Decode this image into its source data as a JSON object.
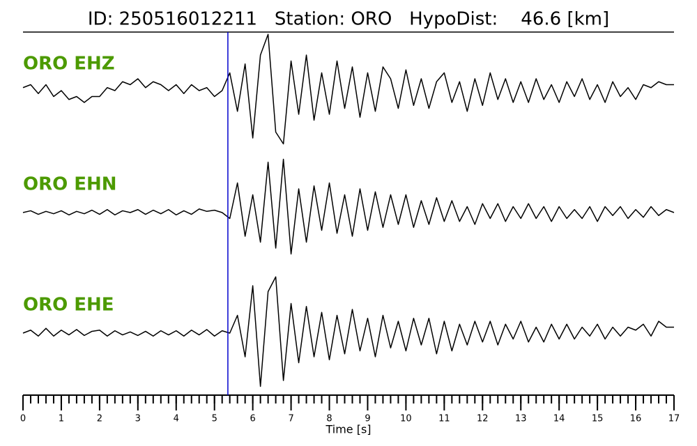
{
  "chart_data": {
    "type": "line",
    "title": "ID: 250516012211   Station: ORO   HypoDist:    46.6 [km]",
    "xlabel": "Time [s]",
    "x": [
      0,
      0.2,
      0.4,
      0.6,
      0.8,
      1,
      1.2,
      1.4,
      1.6,
      1.8,
      2,
      2.2,
      2.4,
      2.6,
      2.8,
      3,
      3.2,
      3.4,
      3.6,
      3.8,
      4,
      4.2,
      4.4,
      4.6,
      4.8,
      5,
      5.2,
      5.4,
      5.6,
      5.8,
      6,
      6.2,
      6.4,
      6.6,
      6.8,
      7,
      7.2,
      7.4,
      7.6,
      7.8,
      8,
      8.2,
      8.4,
      8.6,
      8.8,
      9,
      9.2,
      9.4,
      9.6,
      9.8,
      10,
      10.2,
      10.4,
      10.6,
      10.8,
      11,
      11.2,
      11.4,
      11.6,
      11.8,
      12,
      12.2,
      12.4,
      12.6,
      12.8,
      13,
      13.2,
      13.4,
      13.6,
      13.8,
      14,
      14.2,
      14.4,
      14.6,
      14.8,
      15,
      15.2,
      15.4,
      15.6,
      15.8,
      16,
      16.2,
      16.4,
      16.6,
      16.8,
      17
    ],
    "series": [
      {
        "name": "ORO EHZ",
        "color": "#000000",
        "values": [
          0.05,
          0.1,
          -0.05,
          0.1,
          -0.1,
          0.0,
          -0.15,
          -0.1,
          -0.2,
          -0.1,
          -0.1,
          0.05,
          0.0,
          0.15,
          0.1,
          0.2,
          0.05,
          0.15,
          0.1,
          0.0,
          0.1,
          -0.05,
          0.1,
          0.0,
          0.05,
          -0.1,
          0.0,
          0.3,
          -0.35,
          0.45,
          -0.8,
          0.6,
          0.95,
          -0.7,
          -0.9,
          0.5,
          -0.4,
          0.6,
          -0.5,
          0.3,
          -0.4,
          0.5,
          -0.3,
          0.4,
          -0.45,
          0.3,
          -0.35,
          0.4,
          0.2,
          -0.3,
          0.35,
          -0.25,
          0.2,
          -0.3,
          0.15,
          0.3,
          -0.2,
          0.15,
          -0.35,
          0.2,
          -0.25,
          0.3,
          -0.15,
          0.2,
          -0.2,
          0.15,
          -0.2,
          0.2,
          -0.15,
          0.1,
          -0.2,
          0.15,
          -0.1,
          0.2,
          -0.15,
          0.1,
          -0.2,
          0.15,
          -0.1,
          0.05,
          -0.15,
          0.1,
          0.05,
          0.15,
          0.1,
          0.1
        ]
      },
      {
        "name": "ORO EHN",
        "color": "#000000",
        "values": [
          0.0,
          0.03,
          -0.03,
          0.02,
          -0.02,
          0.03,
          -0.04,
          0.02,
          -0.02,
          0.04,
          -0.03,
          0.05,
          -0.04,
          0.03,
          0.0,
          0.05,
          -0.03,
          0.04,
          -0.02,
          0.05,
          -0.04,
          0.03,
          -0.03,
          0.06,
          0.02,
          0.04,
          0.0,
          -0.1,
          0.5,
          -0.4,
          0.3,
          -0.5,
          0.85,
          -0.6,
          0.9,
          -0.7,
          0.4,
          -0.5,
          0.45,
          -0.3,
          0.5,
          -0.35,
          0.3,
          -0.4,
          0.4,
          -0.3,
          0.35,
          -0.25,
          0.3,
          -0.2,
          0.3,
          -0.25,
          0.2,
          -0.2,
          0.25,
          -0.15,
          0.2,
          -0.15,
          0.1,
          -0.2,
          0.15,
          -0.1,
          0.15,
          -0.15,
          0.1,
          -0.1,
          0.15,
          -0.1,
          0.1,
          -0.15,
          0.1,
          -0.1,
          0.05,
          -0.1,
          0.1,
          -0.15,
          0.1,
          -0.05,
          0.1,
          -0.1,
          0.05,
          -0.08,
          0.1,
          -0.05,
          0.05,
          0.0
        ]
      },
      {
        "name": "ORO EHE",
        "color": "#000000",
        "values": [
          0.0,
          0.05,
          -0.05,
          0.08,
          -0.05,
          0.05,
          -0.03,
          0.06,
          -0.04,
          0.03,
          0.05,
          -0.05,
          0.04,
          -0.03,
          0.02,
          -0.04,
          0.03,
          -0.05,
          0.04,
          -0.03,
          0.04,
          -0.05,
          0.05,
          -0.03,
          0.06,
          -0.05,
          0.04,
          0.0,
          0.3,
          -0.4,
          0.8,
          -0.9,
          0.7,
          0.95,
          -0.8,
          0.5,
          -0.5,
          0.45,
          -0.4,
          0.35,
          -0.45,
          0.3,
          -0.35,
          0.4,
          -0.3,
          0.25,
          -0.4,
          0.3,
          -0.25,
          0.2,
          -0.3,
          0.25,
          -0.2,
          0.25,
          -0.35,
          0.2,
          -0.3,
          0.15,
          -0.2,
          0.2,
          -0.15,
          0.2,
          -0.2,
          0.15,
          -0.1,
          0.2,
          -0.15,
          0.1,
          -0.15,
          0.15,
          -0.1,
          0.15,
          -0.1,
          0.1,
          -0.05,
          0.15,
          -0.1,
          0.1,
          -0.05,
          0.1,
          0.05,
          0.15,
          -0.05,
          0.2,
          0.1,
          0.1
        ]
      }
    ],
    "label_color": "#4c9a00",
    "pick": {
      "x": 5.35,
      "color": "#0000cc"
    },
    "xlim": [
      0,
      17
    ],
    "xticks": [
      0,
      1,
      2,
      3,
      4,
      5,
      6,
      7,
      8,
      9,
      10,
      11,
      12,
      13,
      14,
      15,
      16,
      17
    ],
    "minor_step": 0.2,
    "ylim": [
      -1,
      1
    ]
  }
}
